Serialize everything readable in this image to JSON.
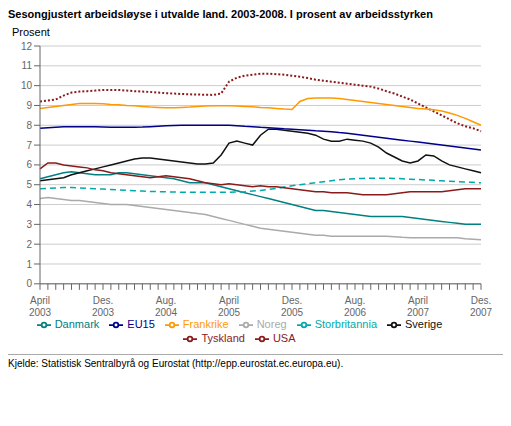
{
  "chart_data": {
    "type": "line",
    "title": "Sesongjustert arbeidsløyse i utvalde land. 2003-2008. I prosent av arbeidsstyrken",
    "ylabel": "Prosent",
    "annotations": [
      "Kjelde: Statistisk Sentralbyrå og Eurostat (http://epp.eurostat.ec.europa.eu)."
    ],
    "categories": [
      "April\n2003",
      null,
      null,
      null,
      null,
      null,
      null,
      null,
      "Des.\n2003",
      null,
      null,
      null,
      null,
      null,
      null,
      null,
      "Aug.\n2004",
      null,
      null,
      null,
      null,
      null,
      null,
      null,
      "April\n2005",
      null,
      null,
      null,
      null,
      null,
      null,
      null,
      "Des.\n2005",
      null,
      null,
      null,
      null,
      null,
      null,
      null,
      "Aug.\n2006",
      null,
      null,
      null,
      null,
      null,
      null,
      null,
      "April\n2007",
      null,
      null,
      null,
      null,
      null,
      null,
      null,
      "Des.\n2007"
    ],
    "ylim": [
      0,
      12
    ],
    "yticks": [
      0,
      1,
      2,
      3,
      4,
      5,
      6,
      7,
      8,
      9,
      10,
      11,
      12
    ],
    "grid": true,
    "legend": "bottom",
    "series": [
      {
        "name": "Noreg",
        "color": "#aaaaaa",
        "line_style": "solid",
        "values": [
          4.3,
          4.35,
          4.3,
          4.25,
          4.2,
          4.2,
          4.15,
          4.1,
          4.05,
          4.0,
          4.0,
          4.0,
          3.95,
          3.9,
          3.85,
          3.8,
          3.75,
          3.7,
          3.65,
          3.6,
          3.55,
          3.5,
          3.4,
          3.3,
          3.2,
          3.1,
          3.0,
          2.9,
          2.8,
          2.75,
          2.7,
          2.65,
          2.6,
          2.55,
          2.5,
          2.45,
          2.45,
          2.4,
          2.4,
          2.4,
          2.4,
          2.4,
          2.4,
          2.4,
          2.4,
          2.38,
          2.35,
          2.33,
          2.32,
          2.32,
          2.32,
          2.32,
          2.32,
          2.32,
          2.28,
          2.25,
          2.22
        ]
      },
      {
        "name": "Danmark",
        "color": "#008080",
        "line_style": "solid",
        "values": [
          5.3,
          5.4,
          5.5,
          5.6,
          5.65,
          5.6,
          5.55,
          5.5,
          5.5,
          5.5,
          5.6,
          5.6,
          5.55,
          5.5,
          5.45,
          5.4,
          5.35,
          5.3,
          5.2,
          5.1,
          5.1,
          5.1,
          5.0,
          4.9,
          4.8,
          4.7,
          4.6,
          4.5,
          4.4,
          4.3,
          4.2,
          4.1,
          4.0,
          3.9,
          3.8,
          3.7,
          3.7,
          3.65,
          3.6,
          3.55,
          3.5,
          3.45,
          3.4,
          3.4,
          3.4,
          3.4,
          3.4,
          3.35,
          3.3,
          3.25,
          3.2,
          3.15,
          3.1,
          3.05,
          3.0,
          3.0,
          3.0
        ]
      },
      {
        "name": "Storbritannia",
        "color": "#00aaaa",
        "line_style": "dashed",
        "values": [
          4.8,
          4.82,
          4.84,
          4.86,
          4.86,
          4.84,
          4.82,
          4.8,
          4.78,
          4.76,
          4.74,
          4.72,
          4.7,
          4.68,
          4.66,
          4.65,
          4.64,
          4.63,
          4.62,
          4.62,
          4.62,
          4.62,
          4.62,
          4.62,
          4.62,
          4.63,
          4.65,
          4.68,
          4.71,
          4.76,
          4.81,
          4.88,
          4.95,
          5.0,
          5.05,
          5.1,
          5.15,
          5.2,
          5.25,
          5.28,
          5.3,
          5.32,
          5.33,
          5.33,
          5.33,
          5.32,
          5.3,
          5.28,
          5.26,
          5.24,
          5.22,
          5.2,
          5.18,
          5.16,
          5.14,
          5.12,
          5.1
        ]
      },
      {
        "name": "Sverige",
        "color": "#111111",
        "line_style": "solid",
        "values": [
          5.2,
          5.25,
          5.3,
          5.35,
          5.5,
          5.6,
          5.7,
          5.8,
          5.9,
          6.0,
          6.1,
          6.2,
          6.3,
          6.35,
          6.35,
          6.3,
          6.25,
          6.2,
          6.15,
          6.1,
          6.05,
          6.05,
          6.1,
          6.5,
          7.1,
          7.2,
          7.1,
          7.0,
          7.5,
          7.8,
          7.8,
          7.75,
          7.7,
          7.65,
          7.6,
          7.5,
          7.3,
          7.2,
          7.2,
          7.3,
          7.25,
          7.2,
          7.1,
          6.9,
          6.6,
          6.4,
          6.2,
          6.1,
          6.2,
          6.5,
          6.45,
          6.2,
          6.0,
          5.9,
          5.8,
          5.7,
          5.6
        ]
      },
      {
        "name": "USA",
        "color": "#8b1a1a",
        "line_style": "solid",
        "values": [
          5.8,
          6.1,
          6.1,
          6.0,
          5.95,
          5.9,
          5.85,
          5.75,
          5.7,
          5.6,
          5.55,
          5.5,
          5.45,
          5.4,
          5.35,
          5.4,
          5.45,
          5.4,
          5.35,
          5.3,
          5.2,
          5.1,
          5.05,
          5.0,
          5.05,
          5.0,
          4.95,
          4.9,
          4.95,
          4.9,
          4.9,
          4.85,
          4.8,
          4.75,
          4.7,
          4.65,
          4.65,
          4.6,
          4.6,
          4.6,
          4.55,
          4.5,
          4.5,
          4.5,
          4.5,
          4.55,
          4.6,
          4.65,
          4.65,
          4.65,
          4.65,
          4.65,
          4.7,
          4.75,
          4.8,
          4.8,
          4.8
        ]
      },
      {
        "name": "EU15",
        "color": "#00008b",
        "line_style": "solid",
        "values": [
          7.85,
          7.88,
          7.9,
          7.92,
          7.93,
          7.93,
          7.92,
          7.92,
          7.91,
          7.9,
          7.9,
          7.9,
          7.9,
          7.91,
          7.93,
          7.95,
          7.97,
          7.99,
          8.0,
          8.0,
          8.0,
          8.0,
          8.0,
          8.0,
          8.0,
          7.98,
          7.95,
          7.93,
          7.9,
          7.88,
          7.85,
          7.82,
          7.8,
          7.78,
          7.75,
          7.72,
          7.7,
          7.67,
          7.63,
          7.6,
          7.55,
          7.5,
          7.45,
          7.4,
          7.35,
          7.3,
          7.25,
          7.2,
          7.15,
          7.1,
          7.05,
          7.0,
          6.95,
          6.9,
          6.85,
          6.8,
          6.75
        ]
      },
      {
        "name": "Tyskland",
        "color": "#8b1a1a",
        "line_style": "dotted",
        "values": [
          9.2,
          9.25,
          9.3,
          9.5,
          9.65,
          9.7,
          9.72,
          9.75,
          9.78,
          9.78,
          9.78,
          9.75,
          9.72,
          9.7,
          9.68,
          9.65,
          9.62,
          9.6,
          9.58,
          9.56,
          9.55,
          9.54,
          9.53,
          9.6,
          10.2,
          10.4,
          10.5,
          10.55,
          10.6,
          10.6,
          10.58,
          10.55,
          10.5,
          10.45,
          10.38,
          10.3,
          10.25,
          10.2,
          10.15,
          10.1,
          10.05,
          10.0,
          9.95,
          9.85,
          9.72,
          9.6,
          9.45,
          9.3,
          9.1,
          8.9,
          8.7,
          8.5,
          8.3,
          8.1,
          7.95,
          7.85,
          7.7
        ]
      },
      {
        "name": "Frankrike",
        "color": "#ff9900",
        "line_style": "solid",
        "values": [
          8.85,
          8.9,
          8.95,
          9.0,
          9.05,
          9.1,
          9.1,
          9.1,
          9.08,
          9.05,
          9.03,
          9.0,
          8.98,
          8.95,
          8.92,
          8.9,
          8.88,
          8.88,
          8.9,
          8.92,
          8.95,
          8.97,
          8.98,
          8.98,
          8.98,
          8.97,
          8.95,
          8.93,
          8.9,
          8.88,
          8.85,
          8.82,
          8.8,
          9.2,
          9.35,
          9.38,
          9.38,
          9.38,
          9.35,
          9.3,
          9.25,
          9.2,
          9.15,
          9.1,
          9.05,
          9.0,
          8.95,
          8.9,
          8.85,
          8.82,
          8.78,
          8.72,
          8.62,
          8.5,
          8.35,
          8.18,
          8.0
        ]
      }
    ]
  }
}
